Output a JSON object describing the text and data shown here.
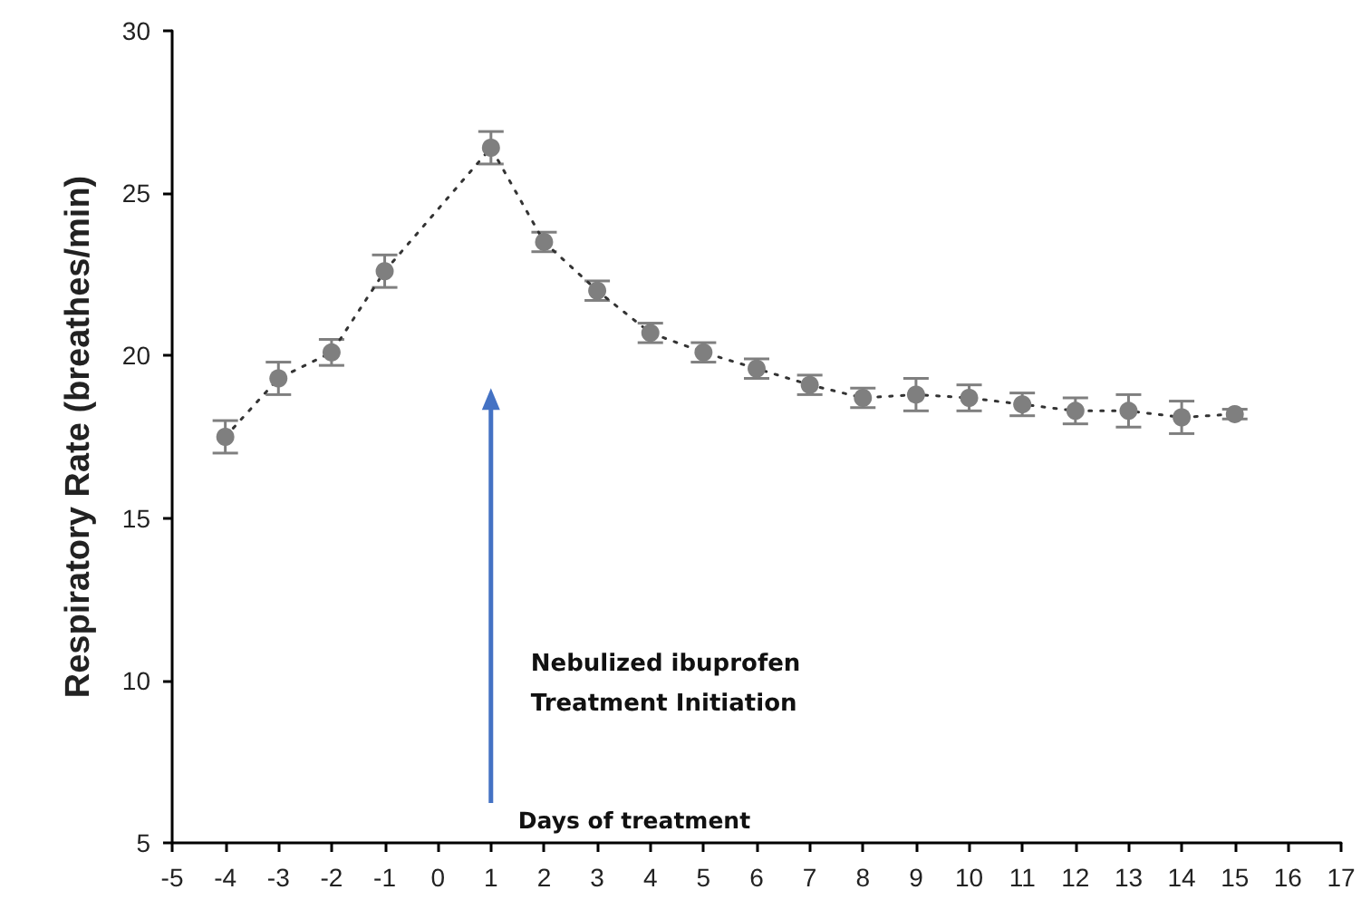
{
  "chart_data": {
    "type": "line",
    "ylabel": "Respiratory Rate (breathes/min)",
    "xlabel": "Days of treatment",
    "x": [
      -4,
      -3,
      -2,
      -1,
      1,
      2,
      3,
      4,
      5,
      6,
      7,
      8,
      9,
      10,
      11,
      12,
      13,
      14,
      15
    ],
    "series": [
      {
        "color": "#7f7f7f",
        "values": [
          17.5,
          19.3,
          20.1,
          22.6,
          26.4,
          23.5,
          22.0,
          20.7,
          20.1,
          19.6,
          19.1,
          18.7,
          18.8,
          18.7,
          18.5,
          18.3,
          18.3,
          18.1,
          18.2
        ],
        "errors": [
          0.5,
          0.5,
          0.4,
          0.5,
          0.5,
          0.3,
          0.3,
          0.3,
          0.3,
          0.3,
          0.3,
          0.3,
          0.5,
          0.4,
          0.35,
          0.4,
          0.5,
          0.5,
          0.15
        ]
      }
    ],
    "xlim": [
      -5,
      17
    ],
    "xticks": [
      -5,
      -4,
      -3,
      -2,
      -1,
      0,
      1,
      2,
      3,
      4,
      5,
      6,
      7,
      8,
      9,
      10,
      11,
      12,
      13,
      14,
      15,
      16,
      17
    ],
    "ylim": [
      5,
      30
    ],
    "yticks": [
      5,
      10,
      15,
      20,
      25,
      30
    ],
    "annotations": [
      "Nebulized ibuprofen\nTreatment Initiation"
    ],
    "marker": "circle",
    "line_style": "dotted",
    "grid": false
  }
}
